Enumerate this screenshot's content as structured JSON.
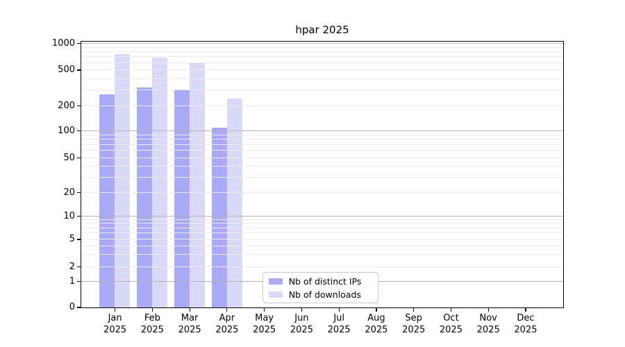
{
  "title": "hpar 2025",
  "legend": {
    "items": [
      {
        "label": "Nb of distinct IPs",
        "color": "#a9a9f5"
      },
      {
        "label": "Nb of downloads",
        "color": "#d9d9f8"
      }
    ]
  },
  "axes": {
    "y_tick_labels": [
      "0",
      "1",
      "2",
      "5",
      "10",
      "20",
      "50",
      "100",
      "200",
      "500",
      "1000"
    ],
    "x_tick_months": [
      "Jan",
      "Feb",
      "Mar",
      "Apr",
      "May",
      "Jun",
      "Jul",
      "Aug",
      "Sep",
      "Oct",
      "Nov",
      "Dec"
    ],
    "x_tick_year": "2025"
  },
  "colors": {
    "ips_bar": "#a9a9f5",
    "downloads_bar": "#d9d9f8",
    "grid_major": "#b3b3b3",
    "grid_minor": "#ececec",
    "spine": "#000000"
  },
  "chart_data": {
    "type": "bar",
    "title": "hpar 2025",
    "categories": [
      "Jan 2025",
      "Feb 2025",
      "Mar 2025",
      "Apr 2025",
      "May 2025",
      "Jun 2025",
      "Jul 2025",
      "Aug 2025",
      "Sep 2025",
      "Oct 2025",
      "Nov 2025",
      "Dec 2025"
    ],
    "series": [
      {
        "name": "Nb of distinct IPs",
        "color": "#a9a9f5",
        "values": [
          268,
          316,
          298,
          108,
          0,
          0,
          0,
          0,
          0,
          0,
          0,
          0
        ]
      },
      {
        "name": "Nb of downloads",
        "color": "#d9d9f8",
        "values": [
          752,
          683,
          610,
          240,
          0,
          0,
          0,
          0,
          0,
          0,
          0,
          0
        ]
      }
    ],
    "y_ticks": [
      0,
      1,
      2,
      5,
      10,
      20,
      50,
      100,
      200,
      500,
      1000
    ],
    "y_scale": "log above 1, linear between 0 and 1",
    "ylim": [
      0,
      1070
    ],
    "grid": {
      "horizontal": true,
      "which": "major and minor",
      "major_at": [
        1,
        10,
        100,
        1000
      ]
    },
    "legend_position": "inside lower-center-left",
    "xlabel": "",
    "ylabel": ""
  }
}
